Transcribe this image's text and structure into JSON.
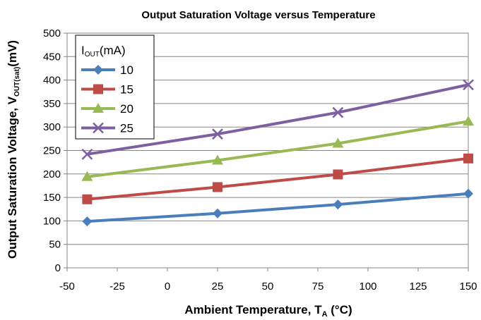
{
  "chart_data": {
    "type": "line",
    "title": "Output Saturation Voltage versus Temperature",
    "xlabel_parts": [
      "Ambient Temperature, T",
      "A",
      " (°C)"
    ],
    "ylabel_parts": [
      "Output Saturation Voltage,  V",
      "OUT(sat)",
      "(mV)"
    ],
    "x": [
      -40,
      25,
      85,
      150
    ],
    "xlim": [
      -50,
      150
    ],
    "ylim": [
      0,
      500
    ],
    "x_ticks": [
      -50,
      -25,
      0,
      25,
      50,
      75,
      100,
      125,
      150
    ],
    "y_ticks": [
      0,
      50,
      100,
      150,
      200,
      250,
      300,
      350,
      400,
      450,
      500
    ],
    "grid": true,
    "legend": {
      "title_parts": [
        "I",
        "OUT",
        "(mA)"
      ],
      "placement": "top-left"
    },
    "series": [
      {
        "name": "10",
        "values": [
          99,
          116,
          135,
          158
        ],
        "color": "#4A7EBB",
        "marker": "diamond"
      },
      {
        "name": "15",
        "values": [
          146,
          172,
          199,
          233
        ],
        "color": "#BE4B48",
        "marker": "square"
      },
      {
        "name": "20",
        "values": [
          194,
          229,
          265,
          312
        ],
        "color": "#98B954",
        "marker": "triangle"
      },
      {
        "name": "25",
        "values": [
          242,
          285,
          331,
          390
        ],
        "color": "#7D60A0",
        "marker": "x"
      }
    ]
  }
}
